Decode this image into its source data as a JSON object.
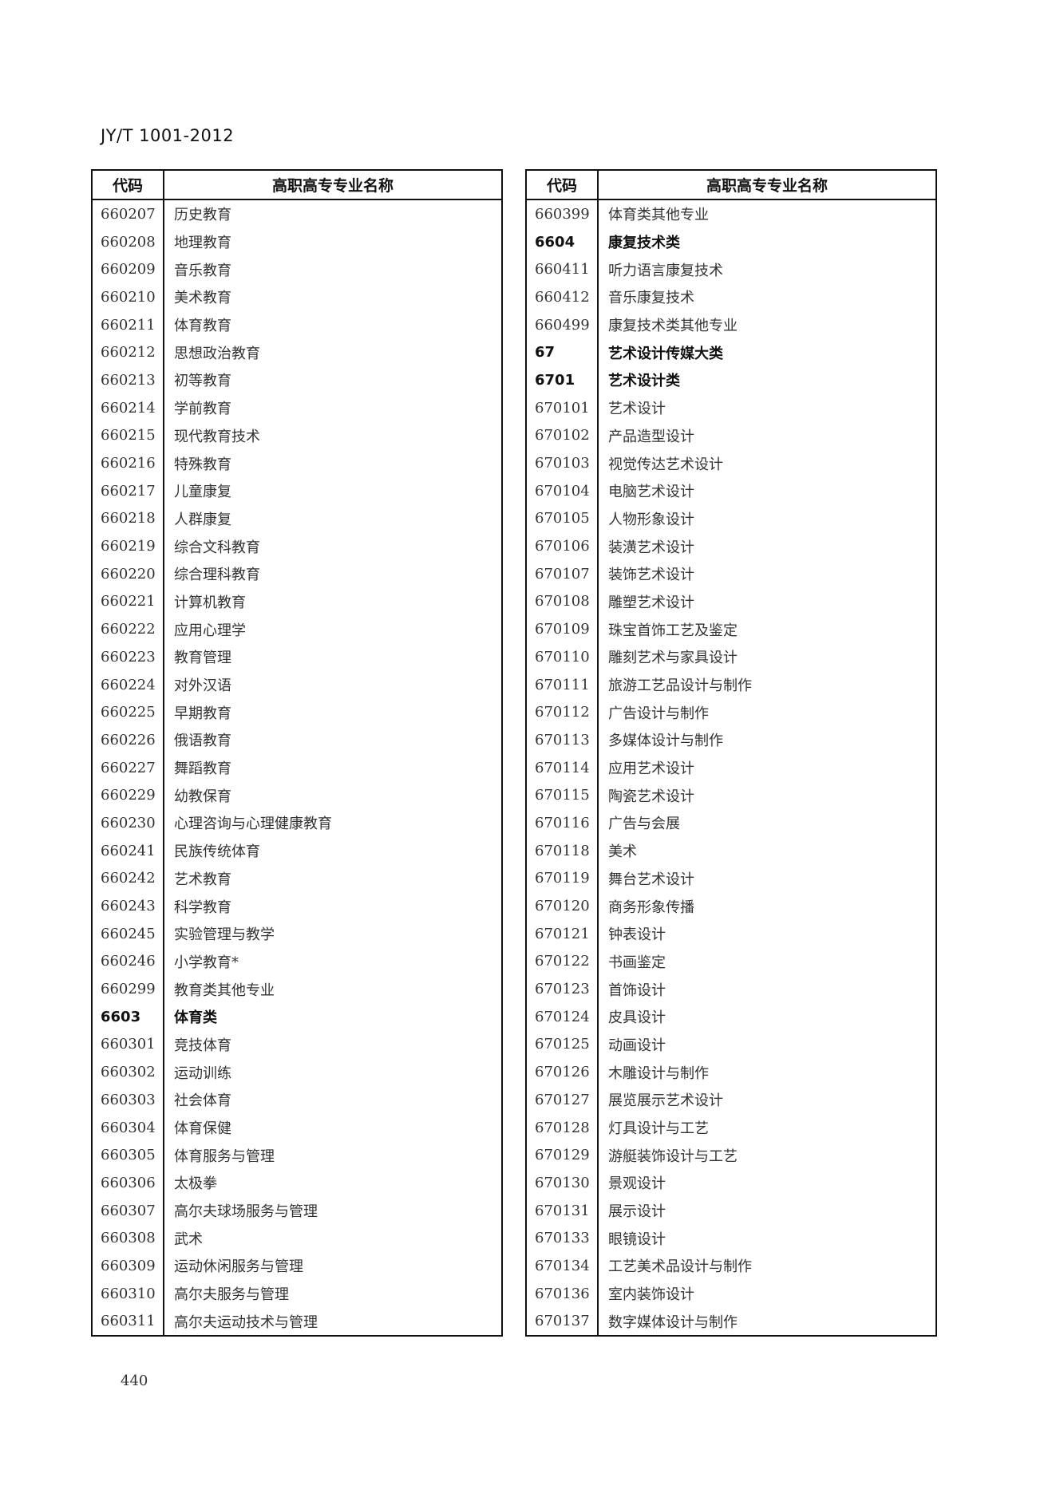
{
  "header": {
    "doc_code": "JY/T 1001-2012"
  },
  "columns": {
    "code": "代码",
    "name": "高职高专专业名称"
  },
  "left_table": [
    {
      "code": "660207",
      "name": "历史教育"
    },
    {
      "code": "660208",
      "name": "地理教育"
    },
    {
      "code": "660209",
      "name": "音乐教育"
    },
    {
      "code": "660210",
      "name": "美术教育"
    },
    {
      "code": "660211",
      "name": "体育教育"
    },
    {
      "code": "660212",
      "name": "思想政治教育"
    },
    {
      "code": "660213",
      "name": "初等教育"
    },
    {
      "code": "660214",
      "name": "学前教育"
    },
    {
      "code": "660215",
      "name": "现代教育技术"
    },
    {
      "code": "660216",
      "name": "特殊教育"
    },
    {
      "code": "660217",
      "name": "儿童康复"
    },
    {
      "code": "660218",
      "name": "人群康复"
    },
    {
      "code": "660219",
      "name": "综合文科教育"
    },
    {
      "code": "660220",
      "name": "综合理科教育"
    },
    {
      "code": "660221",
      "name": "计算机教育"
    },
    {
      "code": "660222",
      "name": "应用心理学"
    },
    {
      "code": "660223",
      "name": "教育管理"
    },
    {
      "code": "660224",
      "name": "对外汉语"
    },
    {
      "code": "660225",
      "name": "早期教育"
    },
    {
      "code": "660226",
      "name": "俄语教育"
    },
    {
      "code": "660227",
      "name": "舞蹈教育"
    },
    {
      "code": "660229",
      "name": "幼教保育"
    },
    {
      "code": "660230",
      "name": "心理咨询与心理健康教育"
    },
    {
      "code": "660241",
      "name": "民族传统体育"
    },
    {
      "code": "660242",
      "name": "艺术教育"
    },
    {
      "code": "660243",
      "name": "科学教育"
    },
    {
      "code": "660245",
      "name": "实验管理与教学"
    },
    {
      "code": "660246",
      "name": "小学教育*"
    },
    {
      "code": "660299",
      "name": "教育类其他专业"
    },
    {
      "code": "6603",
      "name": "体育类",
      "bold": true
    },
    {
      "code": "660301",
      "name": "竞技体育"
    },
    {
      "code": "660302",
      "name": "运动训练"
    },
    {
      "code": "660303",
      "name": "社会体育"
    },
    {
      "code": "660304",
      "name": "体育保健"
    },
    {
      "code": "660305",
      "name": "体育服务与管理"
    },
    {
      "code": "660306",
      "name": "太极拳"
    },
    {
      "code": "660307",
      "name": "高尔夫球场服务与管理"
    },
    {
      "code": "660308",
      "name": "武术"
    },
    {
      "code": "660309",
      "name": "运动休闲服务与管理"
    },
    {
      "code": "660310",
      "name": "高尔夫服务与管理"
    },
    {
      "code": "660311",
      "name": "高尔夫运动技术与管理"
    }
  ],
  "right_table": [
    {
      "code": "660399",
      "name": "体育类其他专业"
    },
    {
      "code": "6604",
      "name": "康复技术类",
      "bold": true
    },
    {
      "code": "660411",
      "name": "听力语言康复技术"
    },
    {
      "code": "660412",
      "name": "音乐康复技术"
    },
    {
      "code": "660499",
      "name": "康复技术类其他专业"
    },
    {
      "code": "67",
      "name": "艺术设计传媒大类",
      "bold": true
    },
    {
      "code": "6701",
      "name": "艺术设计类",
      "bold": true
    },
    {
      "code": "670101",
      "name": "艺术设计"
    },
    {
      "code": "670102",
      "name": "产品造型设计"
    },
    {
      "code": "670103",
      "name": "视觉传达艺术设计"
    },
    {
      "code": "670104",
      "name": "电脑艺术设计"
    },
    {
      "code": "670105",
      "name": "人物形象设计"
    },
    {
      "code": "670106",
      "name": "装潢艺术设计"
    },
    {
      "code": "670107",
      "name": "装饰艺术设计"
    },
    {
      "code": "670108",
      "name": "雕塑艺术设计"
    },
    {
      "code": "670109",
      "name": "珠宝首饰工艺及鉴定"
    },
    {
      "code": "670110",
      "name": "雕刻艺术与家具设计"
    },
    {
      "code": "670111",
      "name": "旅游工艺品设计与制作"
    },
    {
      "code": "670112",
      "name": "广告设计与制作"
    },
    {
      "code": "670113",
      "name": "多媒体设计与制作"
    },
    {
      "code": "670114",
      "name": "应用艺术设计"
    },
    {
      "code": "670115",
      "name": "陶瓷艺术设计"
    },
    {
      "code": "670116",
      "name": "广告与会展"
    },
    {
      "code": "670118",
      "name": "美术"
    },
    {
      "code": "670119",
      "name": "舞台艺术设计"
    },
    {
      "code": "670120",
      "name": "商务形象传播"
    },
    {
      "code": "670121",
      "name": "钟表设计"
    },
    {
      "code": "670122",
      "name": "书画鉴定"
    },
    {
      "code": "670123",
      "name": "首饰设计"
    },
    {
      "code": "670124",
      "name": "皮具设计"
    },
    {
      "code": "670125",
      "name": "动画设计"
    },
    {
      "code": "670126",
      "name": "木雕设计与制作"
    },
    {
      "code": "670127",
      "name": "展览展示艺术设计"
    },
    {
      "code": "670128",
      "name": "灯具设计与工艺"
    },
    {
      "code": "670129",
      "name": "游艇装饰设计与工艺"
    },
    {
      "code": "670130",
      "name": "景观设计"
    },
    {
      "code": "670131",
      "name": "展示设计"
    },
    {
      "code": "670133",
      "name": "眼镜设计"
    },
    {
      "code": "670134",
      "name": "工艺美术品设计与制作"
    },
    {
      "code": "670136",
      "name": "室内装饰设计"
    },
    {
      "code": "670137",
      "name": "数字媒体设计与制作"
    }
  ],
  "footer": {
    "page_number": "440"
  }
}
